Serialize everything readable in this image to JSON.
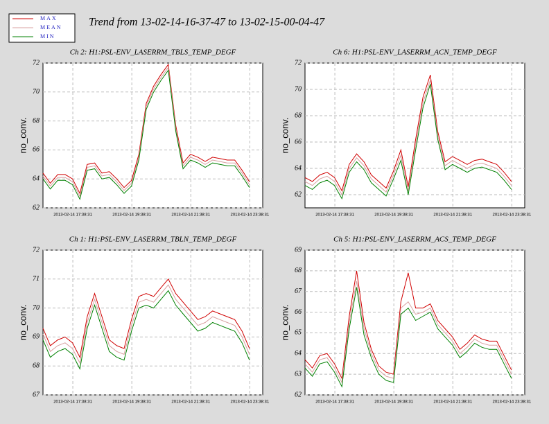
{
  "title": "Trend from 13-02-14-16-37-47 to 13-02-15-00-04-47",
  "chart_data": [
    {
      "type": "line",
      "title": "Ch 2: H1:PSL-ENV_LASERRM_TBLS_TEMP_DEGF",
      "ylabel": "no_conv.",
      "grid": true,
      "x": [
        16.63,
        16.88,
        17.13,
        17.38,
        17.63,
        17.88,
        18.13,
        18.38,
        18.63,
        18.88,
        19.13,
        19.38,
        19.63,
        19.88,
        20.13,
        20.38,
        20.63,
        20.88,
        21.13,
        21.38,
        21.63,
        21.88,
        22.13,
        22.38,
        22.63,
        22.88,
        23.13,
        23.38,
        23.63
      ],
      "xlim": [
        16.63,
        24.08
      ],
      "xticks": [
        {
          "value": 17.642,
          "label": "2013-02-14 17:38:31"
        },
        {
          "value": 19.642,
          "label": "2013-02-14 19:38:31"
        },
        {
          "value": 21.642,
          "label": "2013-02-14 21:38:31"
        },
        {
          "value": 23.642,
          "label": "2013-02-14 23:38:31"
        }
      ],
      "ylim": [
        62,
        72
      ],
      "yticks": [
        62,
        64,
        66,
        68,
        70,
        72
      ],
      "series": [
        {
          "name": "MAX",
          "color": "#d00000",
          "values": [
            64.4,
            63.7,
            64.3,
            64.3,
            64.0,
            63.0,
            65.0,
            65.1,
            64.4,
            64.5,
            64.0,
            63.4,
            63.9,
            65.7,
            69.2,
            70.4,
            71.2,
            71.9,
            67.7,
            65.1,
            65.7,
            65.5,
            65.2,
            65.5,
            65.4,
            65.3,
            65.3,
            64.6,
            63.8
          ]
        },
        {
          "name": "MEAN",
          "color": "#d8a0a0",
          "values": [
            64.2,
            63.5,
            64.1,
            64.1,
            63.8,
            62.8,
            64.8,
            64.9,
            64.2,
            64.3,
            63.8,
            63.2,
            63.7,
            65.5,
            69.0,
            70.2,
            71.0,
            71.7,
            67.5,
            64.9,
            65.5,
            65.3,
            65.0,
            65.3,
            65.2,
            65.1,
            65.1,
            64.4,
            63.6
          ]
        },
        {
          "name": "MIN",
          "color": "#008000",
          "values": [
            64.0,
            63.3,
            63.9,
            63.9,
            63.6,
            62.6,
            64.6,
            64.7,
            64.0,
            64.1,
            63.6,
            63.0,
            63.5,
            65.3,
            68.8,
            70.0,
            70.8,
            71.5,
            67.3,
            64.7,
            65.3,
            65.1,
            64.8,
            65.1,
            65.0,
            64.9,
            64.9,
            64.2,
            63.4
          ]
        }
      ]
    },
    {
      "type": "line",
      "title": "Ch 6: H1:PSL-ENV_LASERRM_ACN_TEMP_DEGF",
      "ylabel": "no_conv.",
      "grid": true,
      "x": [
        16.63,
        16.88,
        17.13,
        17.38,
        17.63,
        17.88,
        18.13,
        18.38,
        18.63,
        18.88,
        19.13,
        19.38,
        19.63,
        19.88,
        20.13,
        20.38,
        20.63,
        20.88,
        21.13,
        21.38,
        21.63,
        21.88,
        22.13,
        22.38,
        22.63,
        22.88,
        23.13,
        23.38,
        23.63
      ],
      "xlim": [
        16.63,
        24.08
      ],
      "xticks": [
        {
          "value": 17.642,
          "label": "2013-02-14 17:38:31"
        },
        {
          "value": 19.642,
          "label": "2013-02-14 19:38:31"
        },
        {
          "value": 21.642,
          "label": "2013-02-14 21:38:31"
        },
        {
          "value": 23.642,
          "label": "2013-02-14 23:38:31"
        }
      ],
      "ylim": [
        61,
        72
      ],
      "yticks": [
        62,
        64,
        66,
        68,
        70,
        72
      ],
      "series": [
        {
          "color": "#d00000",
          "values": [
            63.3,
            63.0,
            63.5,
            63.7,
            63.3,
            62.3,
            64.3,
            65.1,
            64.5,
            63.5,
            63.0,
            62.5,
            63.8,
            65.4,
            62.6,
            66.2,
            69.4,
            71.1,
            66.8,
            64.5,
            64.9,
            64.6,
            64.3,
            64.6,
            64.7,
            64.5,
            64.3,
            63.7,
            63.0
          ]
        },
        {
          "color": "#d8a0a0",
          "values": [
            63.0,
            62.7,
            63.2,
            63.4,
            63.0,
            62.0,
            64.0,
            64.8,
            64.2,
            63.2,
            62.7,
            62.2,
            63.5,
            65.0,
            62.3,
            65.8,
            69.0,
            70.7,
            66.5,
            64.2,
            64.6,
            64.3,
            64.0,
            64.3,
            64.4,
            64.2,
            64.0,
            63.4,
            62.7
          ]
        },
        {
          "color": "#008000",
          "values": [
            62.7,
            62.4,
            62.9,
            63.1,
            62.7,
            61.7,
            63.7,
            64.5,
            63.9,
            62.9,
            62.4,
            61.9,
            63.2,
            64.6,
            62.0,
            65.4,
            68.6,
            70.4,
            66.2,
            63.9,
            64.3,
            64.0,
            63.7,
            64.0,
            64.1,
            63.9,
            63.7,
            63.1,
            62.4
          ]
        }
      ]
    },
    {
      "type": "line",
      "title": "Ch 1: H1:PSL-ENV_LASERRM_TBLN_TEMP_DEGF",
      "ylabel": "no_conv.",
      "grid": true,
      "x": [
        16.63,
        16.88,
        17.13,
        17.38,
        17.63,
        17.88,
        18.13,
        18.38,
        18.63,
        18.88,
        19.13,
        19.38,
        19.63,
        19.88,
        20.13,
        20.38,
        20.63,
        20.88,
        21.13,
        21.38,
        21.63,
        21.88,
        22.13,
        22.38,
        22.63,
        22.88,
        23.13,
        23.38,
        23.63
      ],
      "xlim": [
        16.63,
        24.08
      ],
      "xticks": [
        {
          "value": 17.642,
          "label": "2013-02-14 17:38:31"
        },
        {
          "value": 19.642,
          "label": "2013-02-14 19:38:31"
        },
        {
          "value": 21.642,
          "label": "2013-02-14 21:38:31"
        },
        {
          "value": 23.642,
          "label": "2013-02-14 23:38:31"
        }
      ],
      "ylim": [
        67,
        72
      ],
      "yticks": [
        67,
        68,
        69,
        70,
        71,
        72
      ],
      "series": [
        {
          "color": "#d00000",
          "values": [
            69.3,
            68.7,
            68.9,
            69.0,
            68.8,
            68.3,
            69.7,
            70.5,
            69.7,
            68.9,
            68.7,
            68.6,
            69.6,
            70.4,
            70.5,
            70.4,
            70.7,
            71.0,
            70.5,
            70.2,
            69.9,
            69.6,
            69.7,
            69.9,
            69.8,
            69.7,
            69.6,
            69.2,
            68.6
          ]
        },
        {
          "color": "#d8a0a0",
          "values": [
            69.1,
            68.5,
            68.7,
            68.8,
            68.6,
            68.1,
            69.5,
            70.3,
            69.5,
            68.7,
            68.5,
            68.4,
            69.4,
            70.2,
            70.3,
            70.2,
            70.5,
            70.8,
            70.3,
            70.0,
            69.7,
            69.4,
            69.5,
            69.7,
            69.6,
            69.5,
            69.4,
            69.0,
            68.4
          ]
        },
        {
          "color": "#008000",
          "values": [
            68.9,
            68.3,
            68.5,
            68.6,
            68.4,
            67.9,
            69.3,
            70.1,
            69.3,
            68.5,
            68.3,
            68.2,
            69.2,
            70.0,
            70.1,
            70.0,
            70.3,
            70.6,
            70.1,
            69.8,
            69.5,
            69.2,
            69.3,
            69.5,
            69.4,
            69.3,
            69.2,
            68.8,
            68.2
          ]
        }
      ]
    },
    {
      "type": "line",
      "title": "Ch 5: H1:PSL-ENV_LASERRM_ACS_TEMP_DEGF",
      "ylabel": "no_conv.",
      "grid": true,
      "x": [
        16.63,
        16.88,
        17.13,
        17.38,
        17.63,
        17.88,
        18.13,
        18.38,
        18.63,
        18.88,
        19.13,
        19.38,
        19.63,
        19.88,
        20.13,
        20.38,
        20.63,
        20.88,
        21.13,
        21.38,
        21.63,
        21.88,
        22.13,
        22.38,
        22.63,
        22.88,
        23.13,
        23.38,
        23.63
      ],
      "xlim": [
        16.63,
        24.08
      ],
      "xticks": [
        {
          "value": 17.642,
          "label": "2013-02-14 17:38:31"
        },
        {
          "value": 19.642,
          "label": "2013-02-14 19:38:31"
        },
        {
          "value": 21.642,
          "label": "2013-02-14 21:38:31"
        },
        {
          "value": 23.642,
          "label": "2013-02-14 23:38:31"
        }
      ],
      "ylim": [
        62,
        69
      ],
      "yticks": [
        62,
        63,
        64,
        65,
        66,
        67,
        68,
        69
      ],
      "series": [
        {
          "color": "#d00000",
          "values": [
            63.7,
            63.3,
            63.9,
            64.0,
            63.5,
            62.8,
            65.8,
            68.0,
            65.5,
            64.2,
            63.4,
            63.1,
            63.0,
            66.5,
            67.9,
            66.2,
            66.2,
            66.4,
            65.6,
            65.2,
            64.8,
            64.2,
            64.5,
            64.9,
            64.7,
            64.6,
            64.6,
            63.9,
            63.2
          ]
        },
        {
          "color": "#d8a0a0",
          "values": [
            63.5,
            63.1,
            63.7,
            63.8,
            63.3,
            62.6,
            65.5,
            67.5,
            65.2,
            64.0,
            63.2,
            62.9,
            62.8,
            66.2,
            66.5,
            65.9,
            66.0,
            66.2,
            65.4,
            65.0,
            64.6,
            64.0,
            64.3,
            64.7,
            64.5,
            64.4,
            64.4,
            63.7,
            63.0
          ]
        },
        {
          "color": "#008000",
          "values": [
            63.3,
            62.9,
            63.5,
            63.6,
            63.1,
            62.4,
            65.2,
            67.2,
            64.9,
            63.8,
            63.0,
            62.7,
            62.6,
            65.9,
            66.2,
            65.6,
            65.8,
            66.0,
            65.2,
            64.8,
            64.4,
            63.8,
            64.1,
            64.5,
            64.3,
            64.2,
            64.2,
            63.5,
            62.8
          ]
        }
      ]
    }
  ]
}
